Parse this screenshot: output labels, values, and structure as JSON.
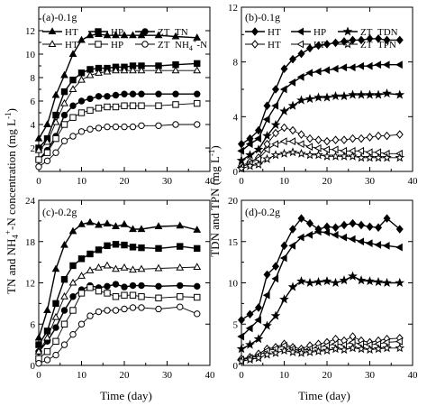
{
  "figure": {
    "ylabel_left_parts": [
      "TN and NH",
      "4",
      "+",
      "-N concentration"
    ],
    "ylabel_right": "TDN and TPN",
    "ylabel_unit_parts": [
      "(mg L",
      "-1",
      ")"
    ],
    "xlabel": "Time (day)"
  },
  "chart_data": [
    {
      "type": "line",
      "panel": "a",
      "title": "(a)-0.1g",
      "xlim": [
        0,
        40
      ],
      "ylim": [
        0,
        14
      ],
      "xticks": [
        0,
        10,
        20,
        30,
        40
      ],
      "yticks": [
        0,
        2,
        4,
        6,
        8,
        10,
        12,
        14
      ],
      "ytick_labels": [
        "",
        "2",
        "4",
        "6",
        "8",
        "10",
        "12",
        ""
      ],
      "legend": {
        "rows": [
          {
            "names": [
              "HT",
              "HP",
              "ZT"
            ],
            "suffix": "TN"
          },
          {
            "names": [
              "HT",
              "HP",
              "ZT"
            ],
            "suffix_parts": [
              "NH",
              "4",
              "+",
              "-N"
            ]
          }
        ]
      },
      "x": [
        0,
        2,
        4,
        6,
        8,
        10,
        12,
        14,
        16,
        18,
        20,
        22,
        24,
        28,
        32,
        37
      ],
      "series": [
        {
          "name": "HT",
          "marker": "tri-f",
          "values": [
            2.8,
            4.0,
            6.5,
            8.2,
            10.0,
            11.2,
            11.6,
            11.7,
            11.6,
            11.6,
            11.6,
            11.6,
            11.6,
            11.6,
            11.5,
            11.4
          ]
        },
        {
          "name": "HP",
          "marker": "sq-f",
          "values": [
            2.0,
            2.8,
            4.8,
            6.8,
            7.8,
            8.4,
            8.7,
            8.8,
            8.8,
            8.9,
            8.9,
            9.0,
            9.0,
            9.0,
            9.1,
            9.2
          ]
        },
        {
          "name": "ZT",
          "marker": "circ-f",
          "values": [
            1.0,
            1.8,
            3.0,
            4.8,
            5.6,
            6.0,
            6.2,
            6.4,
            6.4,
            6.5,
            6.6,
            6.6,
            6.6,
            6.6,
            6.6,
            6.6
          ]
        },
        {
          "name": "HT",
          "marker": "tri-o",
          "values": [
            1.8,
            2.5,
            4.2,
            5.8,
            7.0,
            7.8,
            8.2,
            8.4,
            8.5,
            8.6,
            8.6,
            8.6,
            8.6,
            8.6,
            8.6,
            8.6
          ]
        },
        {
          "name": "HP",
          "marker": "sq-o",
          "values": [
            1.0,
            1.6,
            2.8,
            4.0,
            4.6,
            5.0,
            5.2,
            5.4,
            5.5,
            5.5,
            5.6,
            5.6,
            5.6,
            5.6,
            5.7,
            5.8
          ]
        },
        {
          "name": "ZT",
          "marker": "circ-o",
          "values": [
            0.4,
            0.9,
            1.6,
            2.6,
            3.0,
            3.4,
            3.6,
            3.7,
            3.8,
            3.8,
            3.8,
            3.8,
            3.9,
            3.9,
            4.0,
            4.0
          ]
        }
      ]
    },
    {
      "type": "line",
      "panel": "b",
      "title": "(b)-0.1g",
      "xlim": [
        0,
        40
      ],
      "ylim": [
        0,
        12
      ],
      "xticks": [
        0,
        10,
        20,
        30,
        40
      ],
      "yticks": [
        0,
        4,
        8,
        12
      ],
      "ytick_labels": [
        "0",
        "4",
        "8",
        "12"
      ],
      "legend": {
        "rows": [
          {
            "names": [
              "HT",
              "HP",
              "ZT"
            ],
            "suffix": "TDN"
          },
          {
            "names": [
              "HT",
              "HP",
              "ZT"
            ],
            "suffix": "TPN"
          }
        ]
      },
      "x": [
        0,
        2,
        4,
        6,
        8,
        10,
        12,
        14,
        16,
        18,
        20,
        22,
        24,
        26,
        28,
        30,
        32,
        34,
        37
      ],
      "series": [
        {
          "name": "HT",
          "marker": "dia-f",
          "values": [
            2.0,
            2.4,
            3.0,
            4.8,
            6.0,
            7.5,
            8.2,
            8.6,
            9.0,
            9.2,
            9.3,
            9.4,
            9.5,
            9.6,
            9.6,
            9.7,
            9.7,
            9.6,
            9.6
          ]
        },
        {
          "name": "HP",
          "marker": "ltri-f",
          "values": [
            1.5,
            2.0,
            2.4,
            3.8,
            4.8,
            6.0,
            6.5,
            6.9,
            7.2,
            7.3,
            7.4,
            7.5,
            7.6,
            7.6,
            7.7,
            7.7,
            7.8,
            7.8,
            7.8
          ]
        },
        {
          "name": "ZT",
          "marker": "star-f",
          "values": [
            0.8,
            1.2,
            1.6,
            2.6,
            3.4,
            4.4,
            4.8,
            5.2,
            5.3,
            5.4,
            5.4,
            5.5,
            5.5,
            5.6,
            5.6,
            5.6,
            5.6,
            5.7,
            5.6
          ]
        },
        {
          "name": "HT",
          "marker": "dia-o",
          "values": [
            0.4,
            0.7,
            1.0,
            2.0,
            2.8,
            3.2,
            3.0,
            2.7,
            2.4,
            2.3,
            2.2,
            2.3,
            2.3,
            2.4,
            2.4,
            2.5,
            2.6,
            2.6,
            2.7
          ]
        },
        {
          "name": "HP",
          "marker": "ltri-o",
          "values": [
            0.3,
            0.6,
            0.9,
            1.6,
            2.0,
            2.2,
            2.2,
            2.0,
            1.8,
            1.7,
            1.6,
            1.6,
            1.5,
            1.5,
            1.5,
            1.4,
            1.4,
            1.3,
            1.3
          ]
        },
        {
          "name": "ZT",
          "marker": "star-o",
          "values": [
            0.2,
            0.4,
            0.5,
            0.9,
            1.2,
            1.3,
            1.4,
            1.3,
            1.2,
            1.2,
            1.1,
            1.1,
            1.1,
            1.1,
            1.0,
            1.0,
            1.0,
            1.0,
            1.0
          ]
        }
      ]
    },
    {
      "type": "line",
      "panel": "c",
      "title": "(c)-0.2g",
      "xlim": [
        0,
        40
      ],
      "ylim": [
        0,
        24
      ],
      "xticks": [
        0,
        10,
        20,
        30,
        40
      ],
      "yticks": [
        0,
        6,
        12,
        18,
        24
      ],
      "ytick_labels": [
        "0",
        "6",
        "12",
        "18",
        "24"
      ],
      "x": [
        0,
        2,
        4,
        6,
        8,
        10,
        12,
        14,
        16,
        18,
        20,
        22,
        24,
        28,
        33,
        37
      ],
      "series": [
        {
          "name": "HT",
          "marker": "tri-f",
          "values": [
            4.0,
            8.0,
            14.0,
            17.5,
            19.5,
            20.5,
            20.8,
            20.4,
            20.6,
            20.2,
            20.5,
            19.8,
            19.8,
            20.2,
            20.3,
            19.7
          ]
        },
        {
          "name": "HP",
          "marker": "sq-f",
          "values": [
            3.0,
            5.0,
            9.0,
            12.5,
            14.5,
            15.5,
            16.2,
            16.8,
            17.4,
            17.6,
            17.5,
            17.2,
            17.1,
            17.0,
            17.3,
            17.0
          ]
        },
        {
          "name": "ZT",
          "marker": "circ-f",
          "values": [
            2.0,
            3.5,
            5.5,
            8.0,
            10.0,
            11.0,
            11.6,
            11.3,
            11.5,
            11.8,
            11.4,
            11.6,
            11.6,
            11.5,
            11.6,
            11.5
          ]
        },
        {
          "name": "HT",
          "marker": "tri-o",
          "values": [
            2.0,
            4.0,
            7.0,
            10.0,
            12.0,
            13.0,
            13.8,
            14.2,
            14.5,
            14.0,
            14.2,
            13.9,
            14.0,
            14.1,
            14.2,
            14.3
          ]
        },
        {
          "name": "HP",
          "marker": "sq-o",
          "values": [
            1.0,
            2.0,
            3.5,
            6.0,
            8.0,
            10.5,
            11.3,
            10.8,
            10.5,
            10.0,
            10.2,
            10.2,
            10.0,
            9.8,
            10.0,
            9.9
          ]
        },
        {
          "name": "ZT",
          "marker": "circ-o",
          "values": [
            0.3,
            0.8,
            1.5,
            3.0,
            4.5,
            6.0,
            7.2,
            7.8,
            8.0,
            8.0,
            8.2,
            8.4,
            8.4,
            8.2,
            8.5,
            7.5
          ]
        }
      ]
    },
    {
      "type": "line",
      "panel": "d",
      "title": "(d)-0.2g",
      "xlim": [
        0,
        40
      ],
      "ylim": [
        0,
        20
      ],
      "xticks": [
        0,
        10,
        20,
        30,
        40
      ],
      "yticks": [
        0,
        5,
        10,
        15,
        20
      ],
      "ytick_labels": [
        "0",
        "5",
        "10",
        "15",
        "20"
      ],
      "x": [
        0,
        2,
        4,
        6,
        8,
        10,
        12,
        14,
        16,
        18,
        20,
        22,
        24,
        26,
        28,
        30,
        32,
        34,
        37
      ],
      "series": [
        {
          "name": "HT",
          "marker": "dia-f",
          "values": [
            5.5,
            6.2,
            7.0,
            11.0,
            12.0,
            14.5,
            16.5,
            17.8,
            17.2,
            16.5,
            16.8,
            16.7,
            17.0,
            17.2,
            17.0,
            16.8,
            16.7,
            17.8,
            16.5
          ]
        },
        {
          "name": "HP",
          "marker": "ltri-f",
          "values": [
            3.5,
            4.5,
            5.5,
            8.5,
            10.5,
            13.0,
            14.5,
            15.5,
            15.8,
            16.2,
            16.1,
            15.8,
            15.5,
            15.3,
            15.0,
            14.8,
            14.6,
            14.5,
            14.3
          ]
        },
        {
          "name": "ZT",
          "marker": "star-f",
          "values": [
            2.0,
            2.5,
            3.2,
            4.8,
            6.0,
            8.0,
            9.5,
            10.2,
            10.0,
            10.1,
            10.2,
            10.0,
            10.3,
            10.8,
            10.3,
            10.2,
            10.1,
            10.0,
            10.0
          ]
        },
        {
          "name": "HT",
          "marker": "dia-o",
          "values": [
            0.8,
            1.0,
            1.4,
            2.0,
            2.2,
            2.6,
            2.2,
            2.0,
            2.4,
            2.6,
            2.8,
            3.2,
            3.0,
            3.5,
            3.0,
            2.8,
            3.0,
            3.2,
            3.3
          ]
        },
        {
          "name": "HP",
          "marker": "ltri-o",
          "values": [
            0.7,
            0.9,
            1.2,
            1.8,
            2.0,
            2.4,
            2.0,
            1.8,
            2.0,
            2.2,
            2.4,
            2.6,
            2.5,
            2.8,
            2.6,
            2.5,
            2.6,
            2.8,
            2.9
          ]
        },
        {
          "name": "ZT",
          "marker": "star-o",
          "values": [
            0.5,
            0.7,
            0.9,
            1.3,
            1.5,
            1.8,
            1.6,
            1.5,
            1.6,
            1.7,
            1.8,
            2.0,
            1.9,
            2.1,
            2.0,
            1.9,
            2.0,
            2.1,
            2.1
          ]
        }
      ]
    }
  ]
}
